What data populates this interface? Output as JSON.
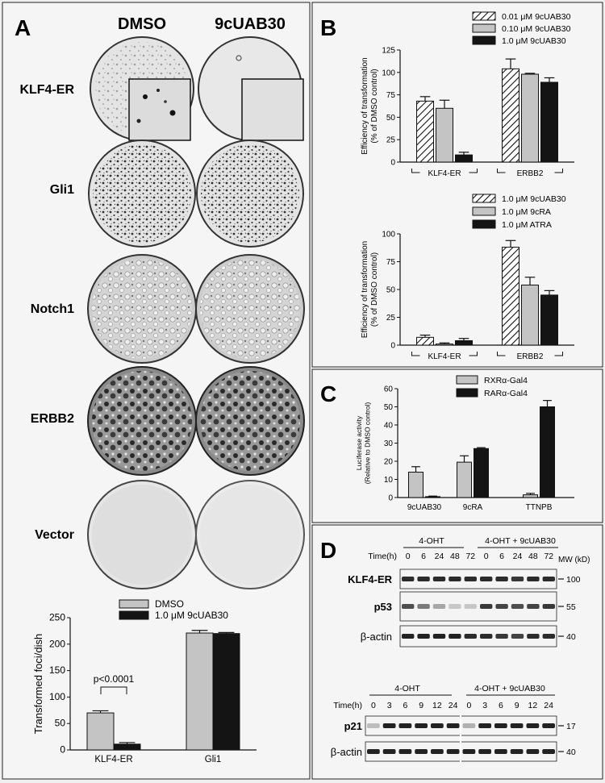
{
  "panelA": {
    "letter": "A",
    "col_headers": [
      "DMSO",
      "9cUAB30"
    ],
    "rows": [
      "KLF4-ER",
      "Gli1",
      "Notch1",
      "ERBB2",
      "Vector"
    ],
    "chart": {
      "ylabel": "Transformed foci/dish",
      "legend": [
        "DMSO",
        "1.0 μM 9cUAB30"
      ],
      "categories": [
        "KLF4-ER",
        "Gli1"
      ],
      "yticks": [
        "0",
        "50",
        "100",
        "150",
        "200",
        "250"
      ],
      "annotation": "p<0.0001"
    }
  },
  "panelB": {
    "letter": "B",
    "chart1": {
      "ylabel_line1": "Efficiency of transformation",
      "ylabel_line2": "(% of DMSO control)",
      "legend": [
        "0.01 μM 9cUAB30",
        "0.10 μM 9cUAB30",
        "1.0 μM 9cUAB30"
      ],
      "categories": [
        "KLF4-ER",
        "ERBB2"
      ],
      "yticks": [
        "0",
        "25",
        "50",
        "75",
        "100",
        "125"
      ]
    },
    "chart2": {
      "ylabel_line1": "Efficiency of transformation",
      "ylabel_line2": "(% of DMSO control)",
      "legend": [
        "1.0 μM 9cUAB30",
        "1.0 μM 9cRA",
        "1.0 μM ATRA"
      ],
      "categories": [
        "KLF4-ER",
        "ERBB2"
      ],
      "yticks": [
        "0",
        "25",
        "50",
        "75",
        "100"
      ]
    }
  },
  "panelC": {
    "letter": "C",
    "ylabel_line1": "Luciferase activity",
    "ylabel_line2": "(Relative to DMSO control)",
    "legend": [
      "RXRα-Gal4",
      "RARα-Gal4"
    ],
    "categories": [
      "9cUAB30",
      "9cRA",
      "TTNPB"
    ],
    "yticks": [
      "0",
      "10",
      "20",
      "30",
      "40",
      "50",
      "60"
    ]
  },
  "panelD": {
    "letter": "D",
    "blot1": {
      "group_labels": [
        "4-OHT",
        "4-OHT +  9cUAB30"
      ],
      "time_label": "Time(h)",
      "times": [
        "0",
        "6",
        "24",
        "48",
        "72",
        "0",
        "6",
        "24",
        "48",
        "72"
      ],
      "mw_label": "MW (kD)",
      "rows": [
        {
          "label": "KLF4-ER",
          "mw": "100"
        },
        {
          "label": "p53",
          "mw": "55"
        },
        {
          "label": "β-actin",
          "mw": "40"
        }
      ]
    },
    "blot2": {
      "group_labels": [
        "4-OHT",
        "4-OHT +  9cUAB30"
      ],
      "time_label": "Time(h)",
      "times": [
        "0",
        "3",
        "6",
        "9",
        "12",
        "24",
        "0",
        "3",
        "6",
        "9",
        "12",
        "24"
      ],
      "rows": [
        {
          "label": "p21",
          "mw": "17"
        },
        {
          "label": "β-actin",
          "mw": "40"
        }
      ]
    }
  },
  "chart_data": [
    {
      "type": "bar",
      "categories": [
        "KLF4-ER",
        "Gli1"
      ],
      "series": [
        {
          "name": "DMSO",
          "values": [
            70,
            221
          ],
          "errors": [
            4,
            5
          ]
        },
        {
          "name": "1.0 μM 9cUAB30",
          "values": [
            11,
            220
          ],
          "errors": [
            3,
            2
          ]
        }
      ],
      "xlabel": "",
      "ylabel": "Transformed foci/dish",
      "ylim": [
        0,
        250
      ],
      "colors": [
        "#c4c4c4",
        "#141414"
      ]
    },
    {
      "type": "bar",
      "categories": [
        "KLF4-ER",
        "ERBB2"
      ],
      "series": [
        {
          "name": "0.01 μM 9cUAB30",
          "values": [
            68,
            104
          ],
          "errors": [
            5,
            11
          ],
          "pattern": "hatch"
        },
        {
          "name": "0.10 μM 9cUAB30",
          "values": [
            60,
            98
          ],
          "errors": [
            9,
            1
          ]
        },
        {
          "name": "1.0 μM 9cUAB30",
          "values": [
            8,
            89
          ],
          "errors": [
            3,
            5
          ]
        }
      ],
      "ylabel": "Efficiency of transformation (% of DMSO control)",
      "ylim": [
        0,
        125
      ],
      "colors": [
        "#ffffff",
        "#c4c4c4",
        "#141414"
      ]
    },
    {
      "type": "bar",
      "categories": [
        "KLF4-ER",
        "ERBB2"
      ],
      "series": [
        {
          "name": "1.0 μM 9cUAB30",
          "values": [
            7,
            88
          ],
          "errors": [
            2,
            6
          ],
          "pattern": "hatch"
        },
        {
          "name": "1.0 μM 9cRA",
          "values": [
            1,
            54
          ],
          "errors": [
            1,
            7
          ]
        },
        {
          "name": "1.0 μM ATRA",
          "values": [
            4,
            45
          ],
          "errors": [
            2,
            4
          ]
        }
      ],
      "ylabel": "Efficiency of transformation (% of DMSO control)",
      "ylim": [
        0,
        100
      ],
      "colors": [
        "#ffffff",
        "#c4c4c4",
        "#141414"
      ]
    },
    {
      "type": "bar",
      "categories": [
        "9cUAB30",
        "9cRA",
        "TTNPB"
      ],
      "series": [
        {
          "name": "RXRα-Gal4",
          "values": [
            14,
            19.5,
            1.5
          ],
          "errors": [
            3,
            3.5,
            0.8
          ]
        },
        {
          "name": "RARα-Gal4",
          "values": [
            0.5,
            27,
            50
          ],
          "errors": [
            0.3,
            0.5,
            3.5
          ]
        }
      ],
      "ylabel": "Luciferase activity (Relative to DMSO control)",
      "ylim": [
        0,
        60
      ],
      "colors": [
        "#c4c4c4",
        "#141414"
      ]
    }
  ],
  "colors": {
    "light_bar": "#c4c4c4",
    "dark_bar": "#141414",
    "dish_bg": "#e8e8e8"
  }
}
